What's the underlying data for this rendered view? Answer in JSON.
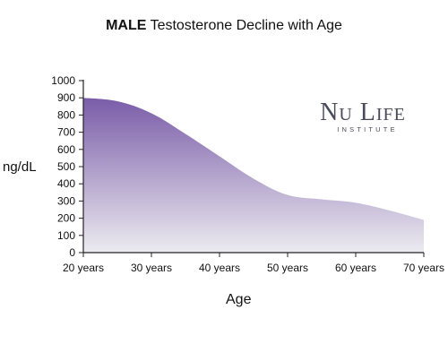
{
  "title": {
    "bold": "MALE",
    "rest": "Testosterone Decline with Age"
  },
  "logo": {
    "main": "Nu Life",
    "sub": "INSTITUTE"
  },
  "colors": {
    "fill_top": "#7a5ca8",
    "fill_bottom": "#ecebf0",
    "axis": "#222222"
  },
  "chart_data": {
    "type": "area",
    "title": "MALE Testosterone Decline with Age",
    "xlabel": "Age",
    "ylabel": "ng/dL",
    "x": [
      20,
      25,
      30,
      35,
      40,
      45,
      50,
      55,
      60,
      65,
      70
    ],
    "y": [
      900,
      880,
      810,
      690,
      560,
      430,
      335,
      310,
      290,
      245,
      190
    ],
    "xticks": [
      "20 years",
      "30 years",
      "40 years",
      "50 years",
      "60 years",
      "70 years"
    ],
    "xtick_values": [
      20,
      30,
      40,
      50,
      60,
      70
    ],
    "yticks": [
      "0",
      "100",
      "200",
      "300",
      "400",
      "500",
      "600",
      "700",
      "800",
      "900",
      "1000"
    ],
    "ytick_values": [
      0,
      100,
      200,
      300,
      400,
      500,
      600,
      700,
      800,
      900,
      1000
    ],
    "xlim": [
      20,
      70
    ],
    "ylim": [
      0,
      1000
    ],
    "grid": false,
    "legend": "none"
  }
}
